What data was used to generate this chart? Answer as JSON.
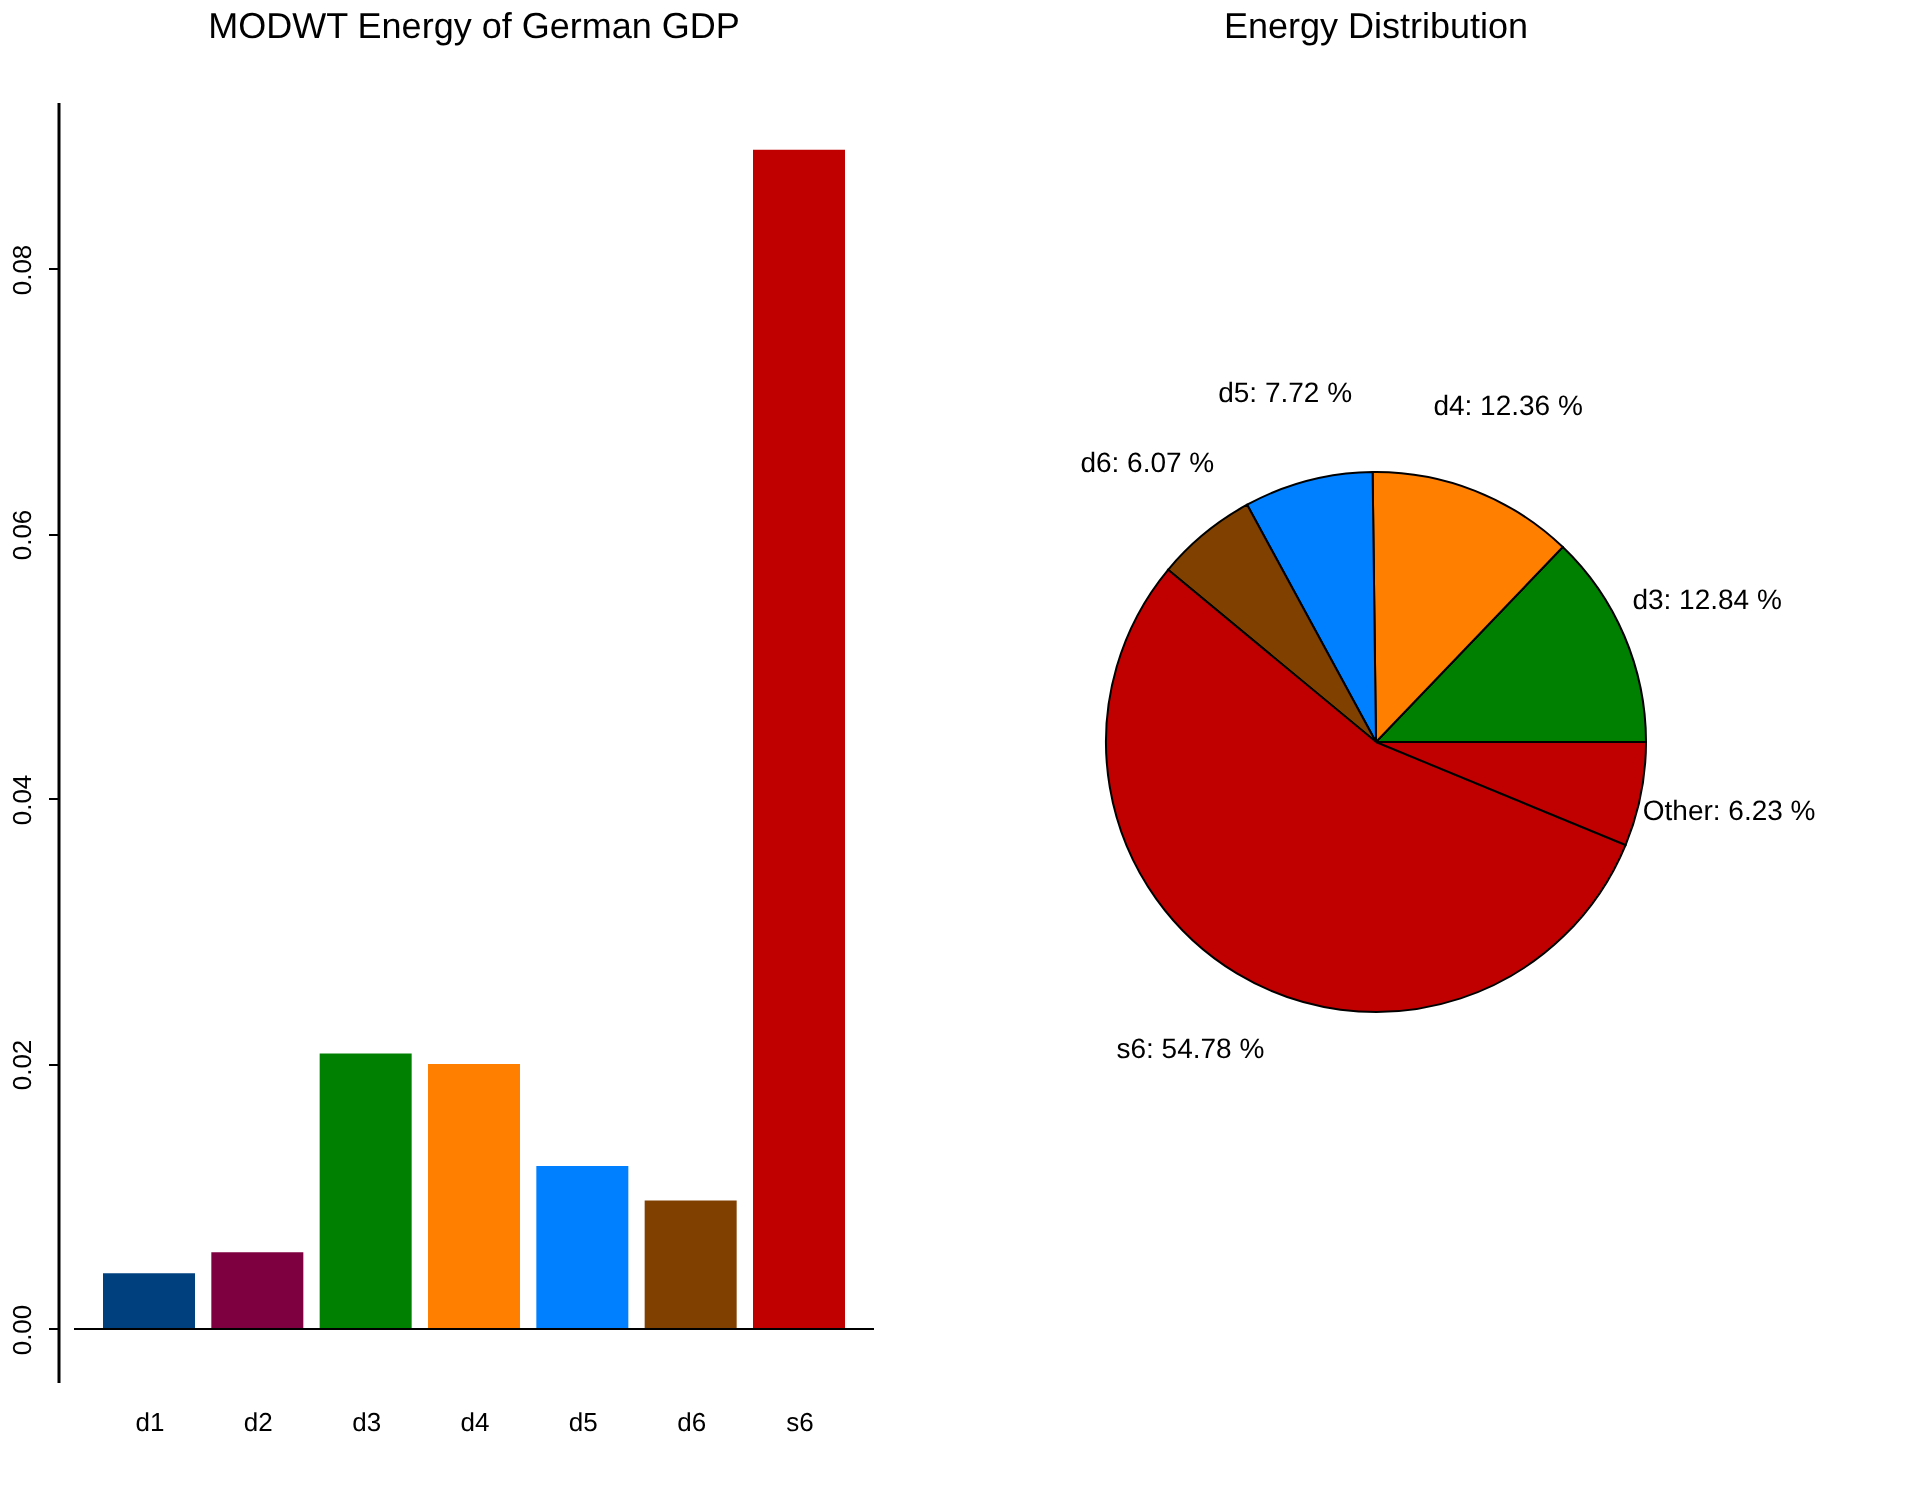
{
  "chart_data": [
    {
      "type": "bar",
      "title": "MODWT Energy of German GDP",
      "categories": [
        "d1",
        "d2",
        "d3",
        "d4",
        "d5",
        "d6",
        "s6"
      ],
      "values": [
        0.0042,
        0.0058,
        0.0208,
        0.02,
        0.0123,
        0.0097,
        0.089
      ],
      "colors": [
        "#00407f",
        "#7f0040",
        "#008000",
        "#ff7f00",
        "#007fff",
        "#804000",
        "#c00000"
      ],
      "ylim": [
        -0.004,
        0.0926
      ],
      "yticks": [
        {
          "value": 0,
          "label": "0.00"
        },
        {
          "value": 0.02,
          "label": "0.02"
        },
        {
          "value": 0.04,
          "label": "0.04"
        },
        {
          "value": 0.06,
          "label": "0.06"
        },
        {
          "value": 0.08,
          "label": "0.08"
        }
      ]
    },
    {
      "type": "pie",
      "title": "Energy Distribution",
      "categories": [
        "d3",
        "d4",
        "d5",
        "d6",
        "s6",
        "Other"
      ],
      "values": [
        12.84,
        12.36,
        7.72,
        6.07,
        54.78,
        6.23
      ],
      "colors": [
        "#008000",
        "#ff7f00",
        "#007fff",
        "#804000",
        "#c00000",
        "#c00000"
      ],
      "value_labels": [
        "12.84 %",
        "12.36 %",
        "7.72 %",
        "6.07 %",
        "54.78 %",
        "6.23 %"
      ]
    }
  ]
}
